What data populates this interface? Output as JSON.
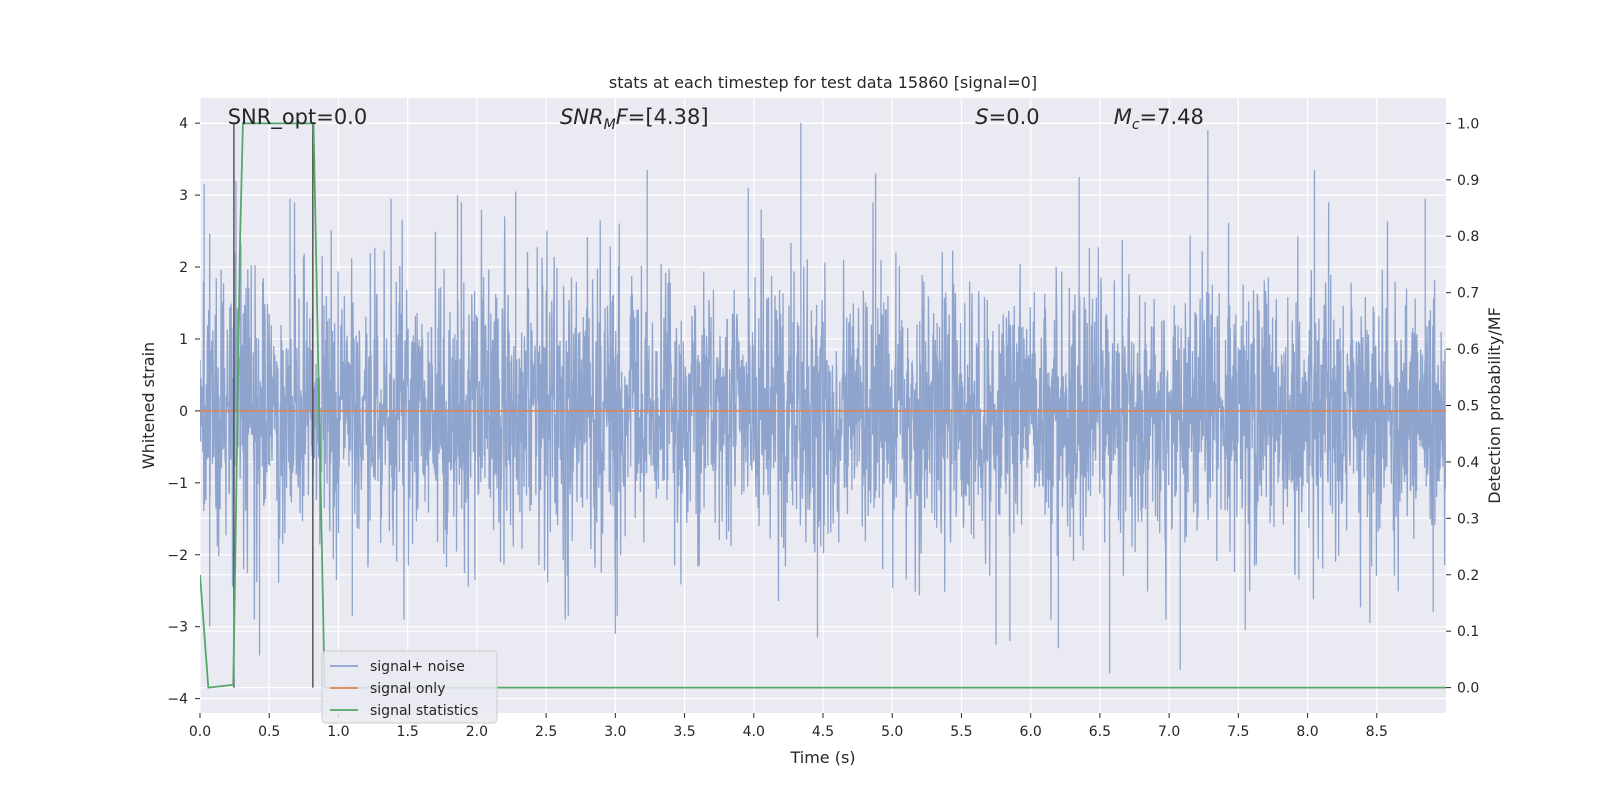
{
  "chart_data": {
    "type": "line",
    "title": "stats at each timestep for test data 15860 [signal=0]",
    "xlabel": "Time (s)",
    "ylabel_left": "Whitened strain",
    "ylabel_right": "Detection probability/MF",
    "xlim": [
      0,
      9.0
    ],
    "ylim_left": [
      -4.2,
      4.35
    ],
    "ylim_right": [
      -0.045,
      1.045
    ],
    "x_ticks": [
      0.0,
      0.5,
      1.0,
      1.5,
      2.0,
      2.5,
      3.0,
      3.5,
      4.0,
      4.5,
      5.0,
      5.5,
      6.0,
      6.5,
      7.0,
      7.5,
      8.0,
      8.5
    ],
    "x_tick_labels": [
      "0.0",
      "0.5",
      "1.0",
      "1.5",
      "2.0",
      "2.5",
      "3.0",
      "3.5",
      "4.0",
      "4.5",
      "5.0",
      "5.5",
      "6.0",
      "6.5",
      "7.0",
      "7.5",
      "8.0",
      "8.5"
    ],
    "y_left_ticks": [
      4,
      3,
      2,
      1,
      0,
      -1,
      -2,
      -3,
      -4
    ],
    "y_left_tick_labels": [
      "4",
      "3",
      "2",
      "1",
      "0",
      "−1",
      "−2",
      "−3",
      "−4"
    ],
    "y_right_ticks": [
      1.0,
      0.9,
      0.8,
      0.7,
      0.6,
      0.5,
      0.4,
      0.3,
      0.2,
      0.1,
      0.0
    ],
    "y_right_tick_labels": [
      "1.0",
      "0.9",
      "0.8",
      "0.7",
      "0.6",
      "0.5",
      "0.4",
      "0.3",
      "0.2",
      "0.1",
      "0.0"
    ],
    "annotations": [
      {
        "label": "SNR_opt=0.0",
        "x": 0.2
      },
      {
        "label": "SNR_MF=[4.38]",
        "x": 2.6
      },
      {
        "label": "S=0.0",
        "x": 5.6
      },
      {
        "label": "M_c=7.48",
        "x": 6.6
      }
    ],
    "series": [
      {
        "name": "signal+ noise",
        "color": "#8fa4cd",
        "description": "whitened strain noise, approx. Gaussian, amplitude mostly within ±2, peaks near 4.0",
        "peaks": [
          {
            "x": 0.03,
            "y": 3.15
          },
          {
            "x": 0.07,
            "y": -3.0
          },
          {
            "x": 0.26,
            "y": 3.2
          },
          {
            "x": 0.43,
            "y": -3.4
          },
          {
            "x": 0.65,
            "y": 2.95
          },
          {
            "x": 1.1,
            "y": -2.85
          },
          {
            "x": 1.38,
            "y": 2.95
          },
          {
            "x": 1.86,
            "y": 3.0
          },
          {
            "x": 2.28,
            "y": 3.05
          },
          {
            "x": 2.66,
            "y": -2.85
          },
          {
            "x": 3.0,
            "y": -3.1
          },
          {
            "x": 3.23,
            "y": 3.35
          },
          {
            "x": 3.96,
            "y": 3.1
          },
          {
            "x": 4.34,
            "y": 4.0
          },
          {
            "x": 4.46,
            "y": -3.15
          },
          {
            "x": 4.88,
            "y": 3.3
          },
          {
            "x": 5.75,
            "y": -3.25
          },
          {
            "x": 5.85,
            "y": -3.2
          },
          {
            "x": 6.2,
            "y": -3.3
          },
          {
            "x": 6.35,
            "y": 3.25
          },
          {
            "x": 6.57,
            "y": -3.65
          },
          {
            "x": 7.08,
            "y": -3.6
          },
          {
            "x": 7.28,
            "y": 3.9
          },
          {
            "x": 7.55,
            "y": -3.05
          },
          {
            "x": 8.05,
            "y": 3.35
          },
          {
            "x": 8.45,
            "y": -2.95
          },
          {
            "x": 8.85,
            "y": 2.95
          }
        ]
      },
      {
        "name": "signal only",
        "color": "#dd8452",
        "x": [
          0.0,
          9.0
        ],
        "y": [
          0.0,
          0.0
        ]
      },
      {
        "name": "signal statistics",
        "color": "#55a868",
        "axis": "right",
        "x": [
          0.0,
          0.06,
          0.24,
          0.25,
          0.29,
          0.31,
          0.82,
          0.86,
          0.9,
          9.0
        ],
        "y": [
          0.2,
          0.0,
          0.005,
          0.15,
          0.8,
          1.0,
          1.0,
          0.5,
          0.0,
          0.0
        ]
      }
    ],
    "vertical_lines": [
      {
        "x": 0.245,
        "y_right_top": 1.0,
        "y_right_bottom": 0.0,
        "color": "#4d4d4d"
      },
      {
        "x": 0.815,
        "y_right_top": 1.0,
        "y_right_bottom": 0.0,
        "color": "#4d4d4d"
      }
    ],
    "legend": {
      "placement": "lower-left",
      "entries": [
        {
          "label": "signal+ noise",
          "color": "#8fa4cd"
        },
        {
          "label": "signal only",
          "color": "#dd8452"
        },
        {
          "label": "signal statistics",
          "color": "#55a868"
        }
      ]
    },
    "grid": true,
    "colors": {
      "background": "#eaeaf2",
      "grid": "#ffffff",
      "noise": "#8fa4cd",
      "signal": "#dd8452",
      "statistics": "#55a868",
      "vline": "#4d4d4d"
    }
  }
}
